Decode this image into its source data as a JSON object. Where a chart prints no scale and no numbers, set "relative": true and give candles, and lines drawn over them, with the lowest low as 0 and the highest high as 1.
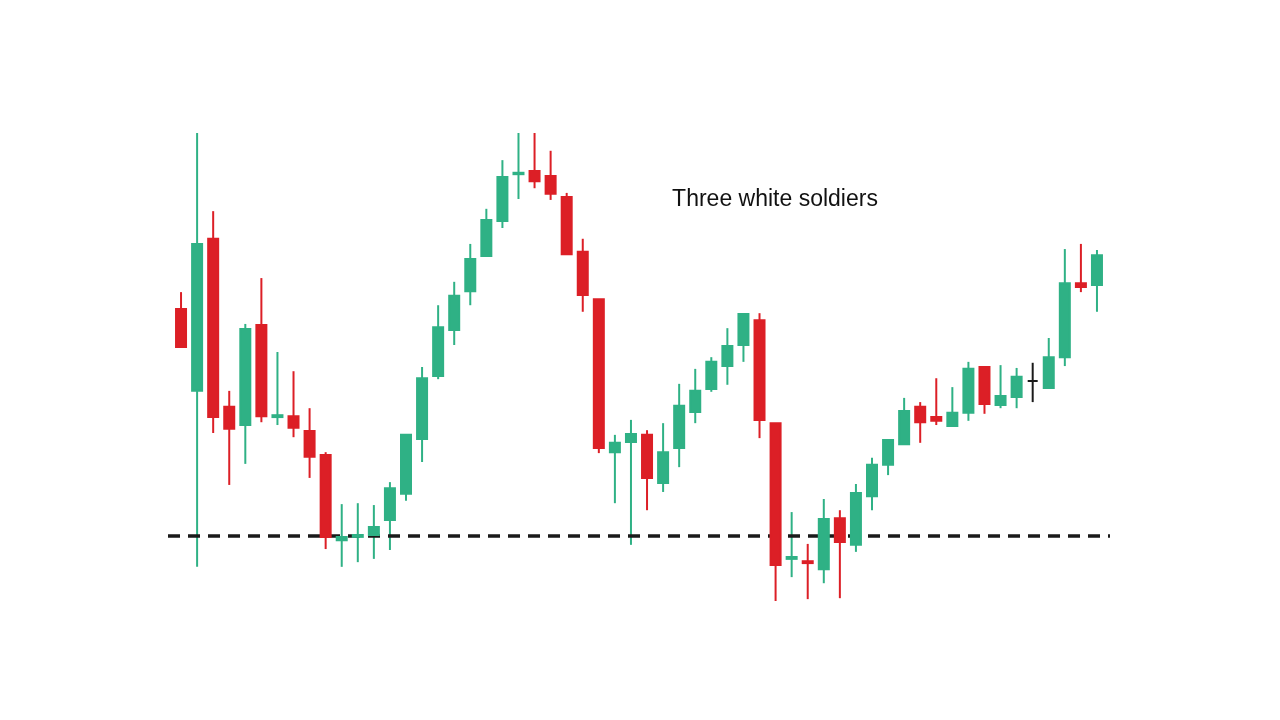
{
  "chart_data": {
    "type": "candlestick",
    "relative": true,
    "annotations": [
      "Three white soldiers"
    ],
    "categories": [
      null,
      null,
      null,
      null,
      null,
      null,
      null,
      null,
      null,
      null,
      null,
      null,
      null,
      null,
      null,
      null,
      null,
      null,
      null,
      null,
      null,
      null,
      null,
      null,
      null,
      null,
      null,
      null,
      null,
      null,
      null,
      null,
      null,
      null,
      null,
      null,
      null,
      null,
      null,
      null,
      null,
      null,
      null,
      null,
      null,
      null,
      null,
      null,
      null,
      null,
      null,
      null,
      null,
      null,
      null,
      null,
      null,
      null
    ],
    "ohlc": [
      [
        0.624,
        0.66,
        0.543,
        0.543
      ],
      [
        0.449,
        1.0,
        0.073,
        0.763
      ],
      [
        0.774,
        0.833,
        0.359,
        0.393
      ],
      [
        0.415,
        0.449,
        0.248,
        0.368
      ],
      [
        0.376,
        0.592,
        0.293,
        0.581
      ],
      [
        0.59,
        0.69,
        0.382,
        0.395
      ],
      [
        0.393,
        0.532,
        0.376,
        0.397
      ],
      [
        0.395,
        0.491,
        0.35,
        0.37
      ],
      [
        0.363,
        0.412,
        0.263,
        0.308
      ],
      [
        0.312,
        0.318,
        0.111,
        0.137
      ],
      [
        0.13,
        0.207,
        0.073,
        0.137
      ],
      [
        0.137,
        0.209,
        0.083,
        0.141
      ],
      [
        0.141,
        0.205,
        0.09,
        0.158
      ],
      [
        0.173,
        0.254,
        0.109,
        0.241
      ],
      [
        0.229,
        0.355,
        0.214,
        0.355
      ],
      [
        0.346,
        0.5,
        0.297,
        0.476
      ],
      [
        0.481,
        0.632,
        0.474,
        0.585
      ],
      [
        0.579,
        0.682,
        0.547,
        0.652
      ],
      [
        0.662,
        0.763,
        0.632,
        0.731
      ],
      [
        0.737,
        0.838,
        0.737,
        0.814
      ],
      [
        0.812,
        0.942,
        0.797,
        0.906
      ],
      [
        0.912,
        1.0,
        0.859,
        0.915
      ],
      [
        0.919,
        1.0,
        0.882,
        0.897
      ],
      [
        0.908,
        0.962,
        0.857,
        0.87
      ],
      [
        0.863,
        0.872,
        0.741,
        0.741
      ],
      [
        0.746,
        0.774,
        0.618,
        0.654
      ],
      [
        0.645,
        0.645,
        0.316,
        0.327
      ],
      [
        0.318,
        0.355,
        0.209,
        0.338
      ],
      [
        0.34,
        0.387,
        0.12,
        0.357
      ],
      [
        0.355,
        0.365,
        0.194,
        0.263
      ],
      [
        0.252,
        0.38,
        0.233,
        0.318
      ],
      [
        0.327,
        0.464,
        0.286,
        0.417
      ],
      [
        0.404,
        0.496,
        0.38,
        0.449
      ],
      [
        0.453,
        0.521,
        0.447,
        0.511
      ],
      [
        0.502,
        0.583,
        0.462,
        0.545
      ],
      [
        0.547,
        0.613,
        0.511,
        0.613
      ],
      [
        0.6,
        0.615,
        0.348,
        0.387
      ],
      [
        0.38,
        0.38,
        0,
        0.077
      ],
      [
        0.09,
        0.19,
        0.051,
        0.094
      ],
      [
        0.085,
        0.122,
        0.004,
        0.081
      ],
      [
        0.068,
        0.218,
        0.038,
        0.175
      ],
      [
        0.177,
        0.194,
        0.006,
        0.126
      ],
      [
        0.12,
        0.25,
        0.105,
        0.231
      ],
      [
        0.224,
        0.306,
        0.194,
        0.291
      ],
      [
        0.291,
        0.344,
        0.269,
        0.344
      ],
      [
        0.335,
        0.434,
        0.335,
        0.406
      ],
      [
        0.415,
        0.425,
        0.338,
        0.382
      ],
      [
        0.393,
        0.476,
        0.376,
        0.385
      ],
      [
        0.374,
        0.457,
        0.374,
        0.402
      ],
      [
        0.402,
        0.511,
        0.385,
        0.496
      ],
      [
        0.5,
        0.5,
        0.4,
        0.421
      ],
      [
        0.419,
        0.504,
        0.412,
        0.438
      ],
      [
        0.436,
        0.498,
        0.412,
        0.479
      ],
      [
        0.47,
        0.509,
        0.425,
        0.47
      ],
      [
        0.455,
        0.562,
        0.455,
        0.521
      ],
      [
        0.521,
        0.752,
        0.502,
        0.679
      ],
      [
        0.679,
        0.763,
        0.66,
        0.671
      ],
      [
        0.675,
        0.75,
        0.618,
        0.739
      ]
    ],
    "colors": [
      "#dc1f26",
      "#2fb185",
      "#dc1f26",
      "#dc1f26",
      "#2fb185",
      "#dc1f26",
      "#2fb185",
      "#dc1f26",
      "#dc1f26",
      "#dc1f26",
      "#2fb185",
      "#2fb185",
      "#2fb185",
      "#2fb185",
      "#2fb185",
      "#2fb185",
      "#2fb185",
      "#2fb185",
      "#2fb185",
      "#2fb185",
      "#2fb185",
      "#2fb185",
      "#dc1f26",
      "#dc1f26",
      "#dc1f26",
      "#dc1f26",
      "#dc1f26",
      "#2fb185",
      "#2fb185",
      "#dc1f26",
      "#2fb185",
      "#2fb185",
      "#2fb185",
      "#2fb185",
      "#2fb185",
      "#2fb185",
      "#dc1f26",
      "#dc1f26",
      "#2fb185",
      "#dc1f26",
      "#2fb185",
      "#dc1f26",
      "#2fb185",
      "#2fb185",
      "#2fb185",
      "#2fb185",
      "#dc1f26",
      "#dc1f26",
      "#2fb185",
      "#2fb185",
      "#dc1f26",
      "#2fb185",
      "#2fb185",
      "#1a1a1a",
      "#2fb185",
      "#2fb185",
      "#dc1f26",
      "#2fb185"
    ],
    "ref_lines": [
      {
        "axis": "y",
        "value": 0.139,
        "line_style": "dashed",
        "color": "#1a1a1a"
      }
    ]
  }
}
